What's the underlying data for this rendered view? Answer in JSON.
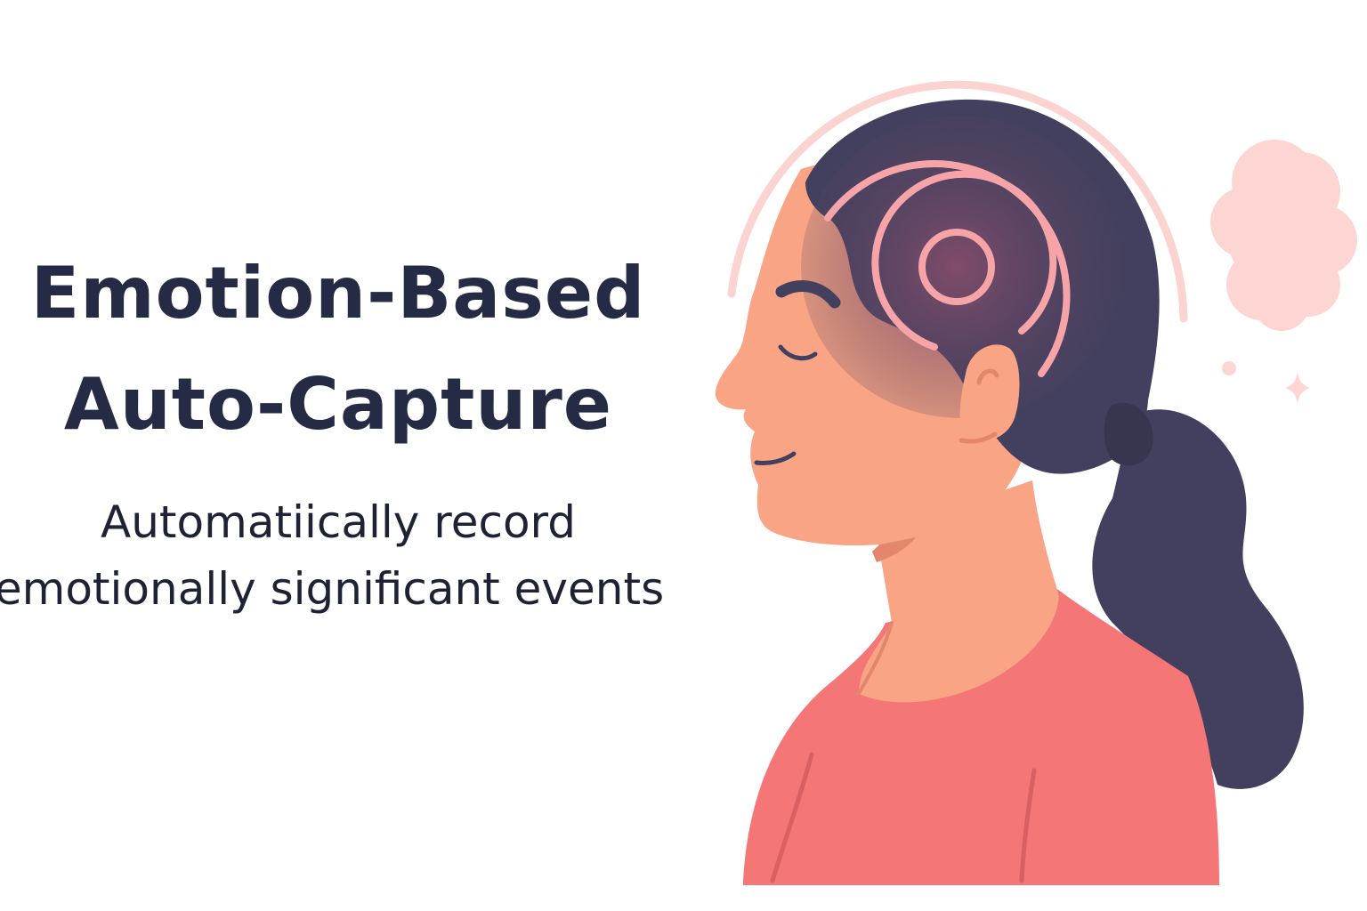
{
  "headline": {
    "line1": "Emotion-Based",
    "line2": "Auto-Capture"
  },
  "subheadline": {
    "line1": "Automatiically record",
    "line2": "emotionally significant events"
  },
  "colors": {
    "headline": "#252a45",
    "subheadline": "#1f2235",
    "hair": "#42405e",
    "skin": "#f9a484",
    "skin_shadow": "#e3866b",
    "shirt": "#f47677",
    "shirt_fold": "#d95f62",
    "rings": "#f6a4a8",
    "halo": "#fbd4d2",
    "cloud": "#fdd6d3",
    "glow": "#8c4e6c"
  },
  "icons": {
    "person": "woman-profile-icon",
    "brainwave": "concentric-rings-icon",
    "thought": "thought-cloud-icon",
    "sparkle": "sparkle-icon"
  }
}
